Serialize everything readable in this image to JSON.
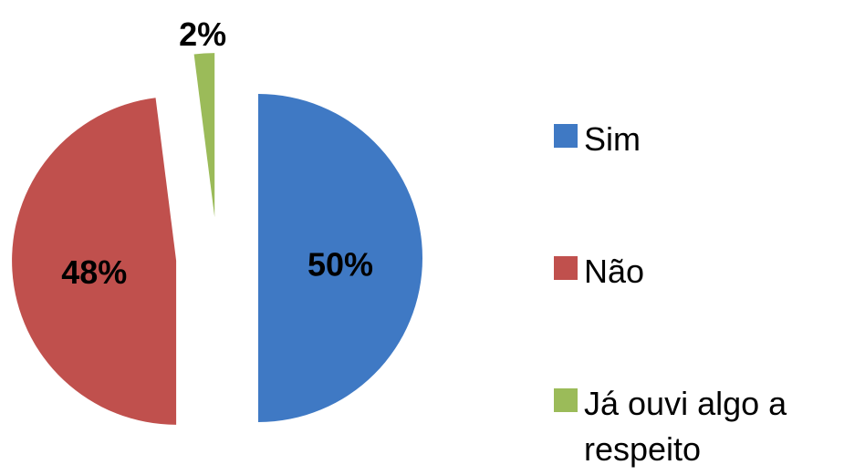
{
  "chart_data": {
    "type": "pie",
    "categories": [
      "Sim",
      "Não",
      "Já ouvi algo a respeito"
    ],
    "values": [
      50,
      48,
      2
    ],
    "value_labels": [
      "50%",
      "48%",
      "2%"
    ],
    "colors": [
      "#3f79c4",
      "#c0504d",
      "#9bbb59"
    ],
    "legend": "right"
  }
}
